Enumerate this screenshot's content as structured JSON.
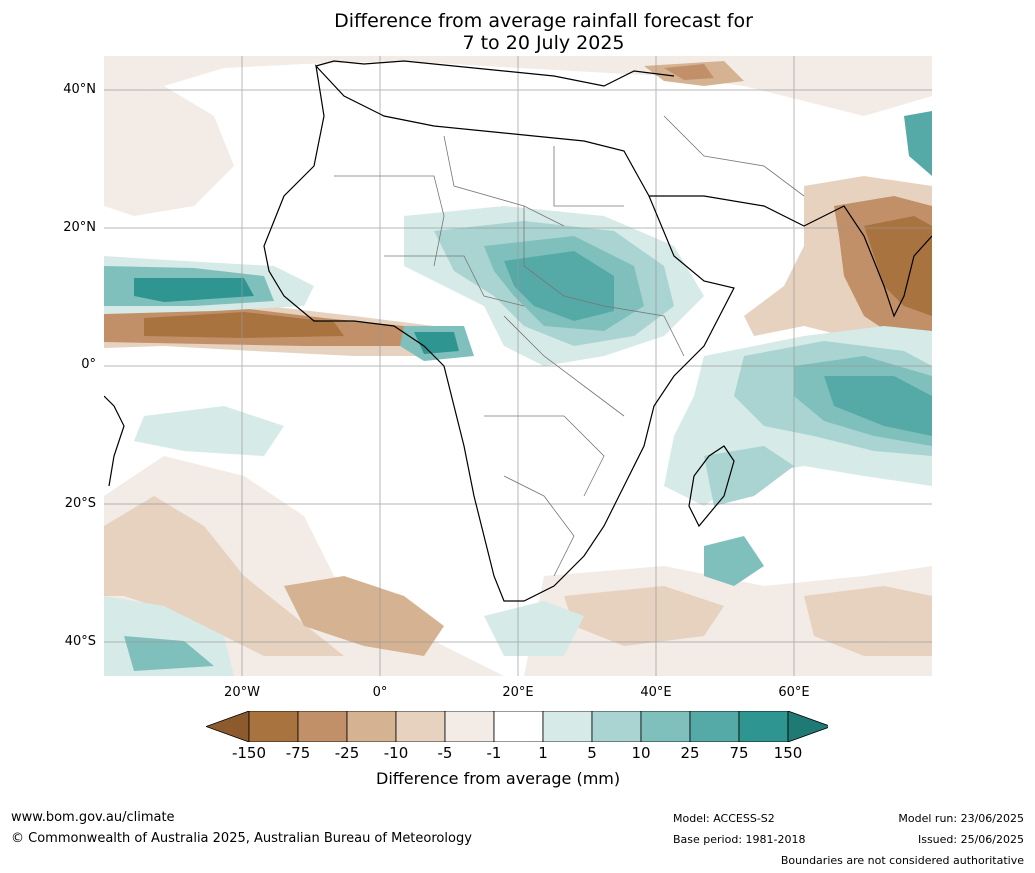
{
  "title_line1": "Difference from average rainfall forecast for",
  "title_line2": "7 to 20 July 2025",
  "lat_labels": [
    "40°N",
    "20°N",
    "0°",
    "20°S",
    "40°S"
  ],
  "lon_labels": [
    "20°W",
    "0°",
    "20°E",
    "40°E",
    "60°E"
  ],
  "colorbar": {
    "ticks": [
      "-150",
      "-75",
      "-25",
      "-10",
      "-5",
      "-1",
      "1",
      "5",
      "10",
      "25",
      "75",
      "150"
    ],
    "colors": [
      "#8c5a2c",
      "#a8733f",
      "#c19068",
      "#d5b291",
      "#e6d2bf",
      "#f3ebe5",
      "#ffffff",
      "#d6eae8",
      "#a9d4d1",
      "#7fc0bd",
      "#55aaa7",
      "#2e9590",
      "#1f7a76"
    ],
    "title": "Difference from average (mm)"
  },
  "footer": {
    "site": "www.bom.gov.au/climate",
    "copyright": "© Commonwealth of Australia 2025, Australian Bureau of Meteorology",
    "model": "Model: ACCESS-S2",
    "base_period": "Base period: 1981-2018",
    "model_run": "Model run: 23/06/2025",
    "issued": "Issued: 25/06/2025",
    "disclaimer": "Boundaries are not considered authoritative"
  }
}
